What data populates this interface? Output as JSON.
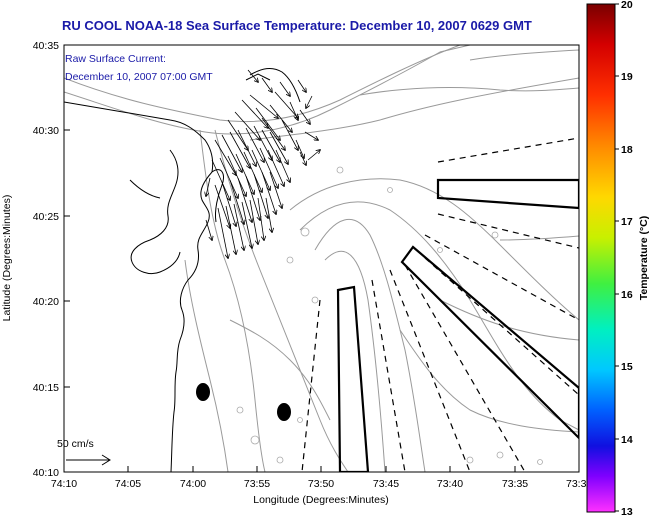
{
  "title": "RU COOL  NOAA-18  Sea Surface Temperature:  December 10, 2007 0629 GMT",
  "inset": {
    "line1": "Raw Surface Current:",
    "line2": "December 10, 2007 07:00 GMT"
  },
  "scale_label": "50 cm/s",
  "xlabel": "Longitude (Degrees:Minutes)",
  "ylabel": "Latitude (Degrees:Minutes)",
  "x_ticks": [
    "74:10",
    "74:05",
    "74:00",
    "73:55",
    "73:50",
    "73:45",
    "73:40",
    "73:35",
    "73:3"
  ],
  "y_ticks": [
    "40:35",
    "40:30",
    "40:25",
    "40:20",
    "40:15",
    "40:10"
  ],
  "colorbar": {
    "label": "Temperature (°C)",
    "ticks": [
      "20",
      "19",
      "18",
      "17",
      "16",
      "15",
      "14",
      "13"
    ],
    "range": [
      13,
      20
    ]
  },
  "colors": {
    "title": "#1a1aa8",
    "contour": "#9a9a9a",
    "coast": "#000000"
  }
}
